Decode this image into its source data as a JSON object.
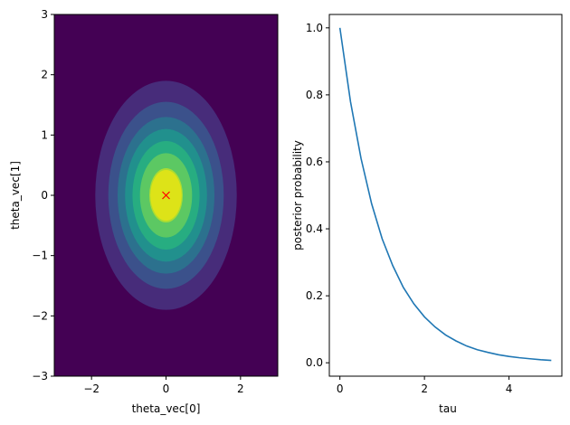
{
  "chart_data": [
    {
      "type": "contour",
      "xlabel": "theta_vec[0]",
      "ylabel": "theta_vec[1]",
      "xlim": [
        -3,
        3
      ],
      "ylim": [
        -3,
        3
      ],
      "xticks": [
        "−2",
        "0",
        "2"
      ],
      "yticks": [
        "3",
        "2",
        "1",
        "0",
        "−1",
        "−2",
        "−3"
      ],
      "grid": false,
      "center": [
        0,
        0
      ],
      "sigma_x": 1.0,
      "sigma_y": 1.0,
      "contour_levels": [
        {
          "rx": 1.9,
          "ry": 1.9,
          "color": "#472c7a"
        },
        {
          "rx": 1.55,
          "ry": 1.55,
          "color": "#3b518b"
        },
        {
          "rx": 1.3,
          "ry": 1.3,
          "color": "#2c718e"
        },
        {
          "rx": 1.1,
          "ry": 1.1,
          "color": "#21908d"
        },
        {
          "rx": 0.9,
          "ry": 0.9,
          "color": "#27ad81"
        },
        {
          "rx": 0.7,
          "ry": 0.7,
          "color": "#5cc863"
        },
        {
          "rx": 0.45,
          "ry": 0.45,
          "color": "#aadc32"
        },
        {
          "rx": 0.42,
          "ry": 0.42,
          "color": "#dde318"
        }
      ],
      "background_color": "#440154",
      "marker": {
        "x": 0,
        "y": 0,
        "symbol": "x",
        "color": "#ff0000"
      }
    },
    {
      "type": "line",
      "xlabel": "tau",
      "ylabel": "posterior probability",
      "xlim": [
        -0.25,
        5.25
      ],
      "ylim": [
        -0.04,
        1.04
      ],
      "xticks": [
        "0",
        "2",
        "4"
      ],
      "yticks": [
        "1.0",
        "0.8",
        "0.6",
        "0.4",
        "0.2",
        "0.0"
      ],
      "grid": false,
      "series": [
        {
          "color": "#1f77b4",
          "x": [
            0,
            0.25,
            0.5,
            0.75,
            1.0,
            1.25,
            1.5,
            1.75,
            2.0,
            2.25,
            2.5,
            2.75,
            3.0,
            3.25,
            3.5,
            3.75,
            4.0,
            4.25,
            4.5,
            4.75,
            5.0
          ],
          "y": [
            1.0,
            0.78,
            0.61,
            0.475,
            0.37,
            0.29,
            0.225,
            0.176,
            0.137,
            0.107,
            0.083,
            0.065,
            0.05,
            0.039,
            0.031,
            0.024,
            0.019,
            0.015,
            0.012,
            0.009,
            0.007
          ]
        }
      ]
    }
  ]
}
